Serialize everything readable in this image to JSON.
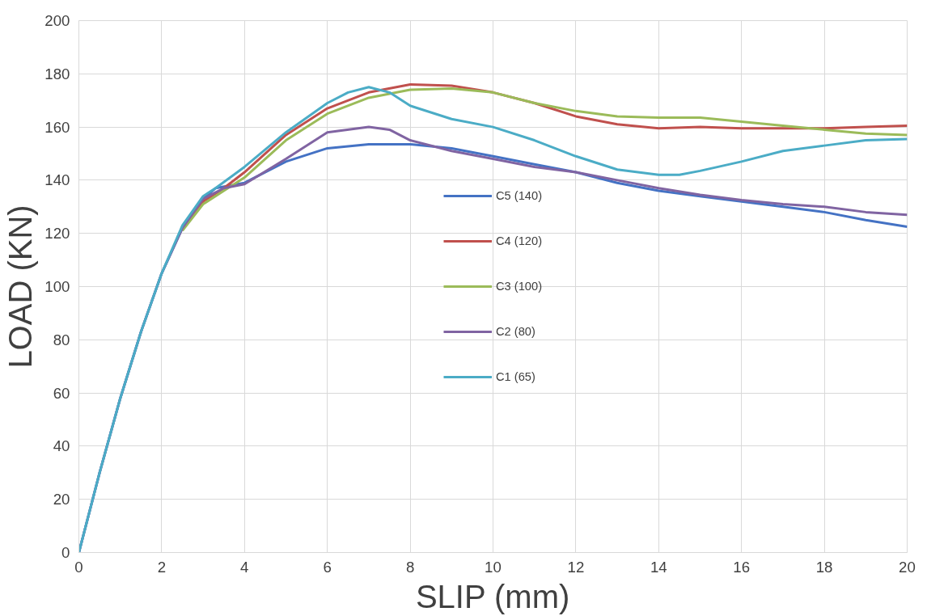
{
  "chart_data": {
    "type": "line",
    "xlabel": "SLIP (mm)",
    "ylabel": "LOAD (KN)",
    "xlim": [
      0,
      20
    ],
    "xticks": [
      0,
      2,
      4,
      6,
      8,
      10,
      12,
      14,
      16,
      18,
      20
    ],
    "ylim": [
      0,
      200
    ],
    "yticks": [
      0,
      20,
      40,
      60,
      80,
      100,
      120,
      140,
      160,
      180,
      200
    ],
    "grid": true,
    "legend": "center",
    "marker": "none",
    "line_style": "solid",
    "series": [
      {
        "name": "C5 (140)",
        "color": "#4472c4",
        "x": [
          0,
          0.5,
          1,
          1.5,
          2,
          2.5,
          3,
          3.3,
          4,
          5,
          6,
          7,
          8,
          9,
          10,
          11,
          12,
          13,
          14,
          15,
          16,
          17,
          18,
          19,
          20
        ],
        "values": [
          0,
          30,
          58,
          83,
          105,
          122,
          133,
          137,
          139,
          147,
          152,
          153.5,
          153.5,
          152,
          149,
          146,
          143,
          139,
          136,
          134,
          132,
          130,
          128,
          125,
          122.5
        ]
      },
      {
        "name": "C4 (120)",
        "color": "#c0504d",
        "x": [
          2.5,
          3,
          3.5,
          4,
          5,
          6,
          7,
          8,
          9,
          10,
          11,
          12,
          13,
          14,
          15,
          16,
          17,
          18,
          19,
          20
        ],
        "values": [
          122,
          132,
          137,
          143,
          157,
          167,
          173,
          176,
          175.5,
          173,
          169,
          164,
          161,
          159.5,
          160,
          159.5,
          159.5,
          159.5,
          160,
          160.5
        ]
      },
      {
        "name": "C3 (100)",
        "color": "#9bbb59",
        "x": [
          2.5,
          3,
          3.5,
          4,
          5,
          6,
          7,
          8,
          9,
          10,
          11,
          12,
          13,
          14,
          15,
          16,
          17,
          18,
          19,
          20
        ],
        "values": [
          121,
          131,
          136,
          141,
          155,
          165,
          171,
          174,
          174.5,
          173,
          169,
          166,
          164,
          163.5,
          163.5,
          162,
          160.5,
          159,
          157.5,
          157
        ]
      },
      {
        "name": "C2 (80)",
        "color": "#8064a2",
        "x": [
          0,
          0.5,
          1,
          1.5,
          2,
          2.5,
          3,
          3.5,
          4,
          5,
          6,
          7,
          7.5,
          8,
          9,
          10,
          11,
          12,
          13,
          14,
          15,
          16,
          17,
          18,
          19,
          20
        ],
        "values": [
          0,
          30,
          58,
          83,
          105,
          122,
          133,
          137,
          138.5,
          148,
          158,
          160,
          159,
          155,
          151,
          148,
          145,
          143,
          140,
          137,
          134.5,
          132.5,
          131,
          130,
          128,
          127
        ]
      },
      {
        "name": "C1 (65)",
        "color": "#4bacc6",
        "x": [
          0,
          0.5,
          1,
          1.5,
          2,
          2.5,
          3,
          3.3,
          4,
          5,
          6,
          6.5,
          7,
          7.5,
          8,
          9,
          10,
          11,
          12,
          13,
          14,
          14.5,
          15,
          16,
          17,
          18,
          19,
          20
        ],
        "values": [
          0,
          30,
          58,
          83,
          105,
          123,
          134,
          137,
          145,
          158,
          169,
          173,
          175,
          173,
          168,
          163,
          160,
          155,
          149,
          144,
          142,
          142,
          143.5,
          147,
          151,
          153,
          155,
          155.5
        ]
      }
    ]
  }
}
